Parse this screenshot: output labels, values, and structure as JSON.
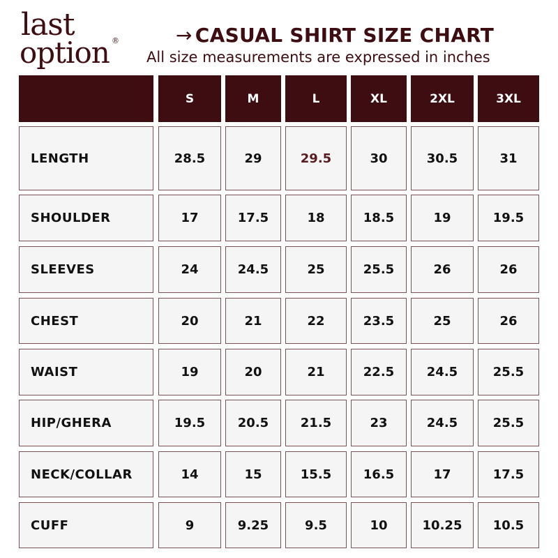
{
  "logo": {
    "line1": "last",
    "line2": "option",
    "mark": "®"
  },
  "header": {
    "arrow": "→",
    "title": "CASUAL SHIRT SIZE CHART",
    "subtitle": "All size measurements are expressed in inches"
  },
  "colors": {
    "brand": "#3d0d12",
    "cell_bg": "#f5f5f5",
    "border": "#7a5057"
  },
  "table": {
    "columns": [
      "",
      "S",
      "M",
      "L",
      "XL",
      "2XL",
      "3XL"
    ],
    "rows": [
      {
        "label": "LENGTH",
        "values": [
          "28.5",
          "29",
          "29.5",
          "30",
          "30.5",
          "31"
        ]
      },
      {
        "label": "SHOULDER",
        "values": [
          "17",
          "17.5",
          "18",
          "18.5",
          "19",
          "19.5"
        ]
      },
      {
        "label": "SLEEVES",
        "values": [
          "24",
          "24.5",
          "25",
          "25.5",
          "26",
          "26"
        ]
      },
      {
        "label": "CHEST",
        "values": [
          "20",
          "21",
          "22",
          "23.5",
          "25",
          "26"
        ]
      },
      {
        "label": "WAIST",
        "values": [
          "19",
          "20",
          "21",
          "22.5",
          "24.5",
          "25.5"
        ]
      },
      {
        "label": "HIP/GHERA",
        "values": [
          "19.5",
          "20.5",
          "21.5",
          "23",
          "24.5",
          "25.5"
        ]
      },
      {
        "label": "NECK/COLLAR",
        "values": [
          "14",
          "15",
          "15.5",
          "16.5",
          "17",
          "17.5"
        ]
      },
      {
        "label": "CUFF",
        "values": [
          "9",
          "9.25",
          "9.5",
          "10",
          "10.25",
          "10.5"
        ]
      }
    ]
  }
}
